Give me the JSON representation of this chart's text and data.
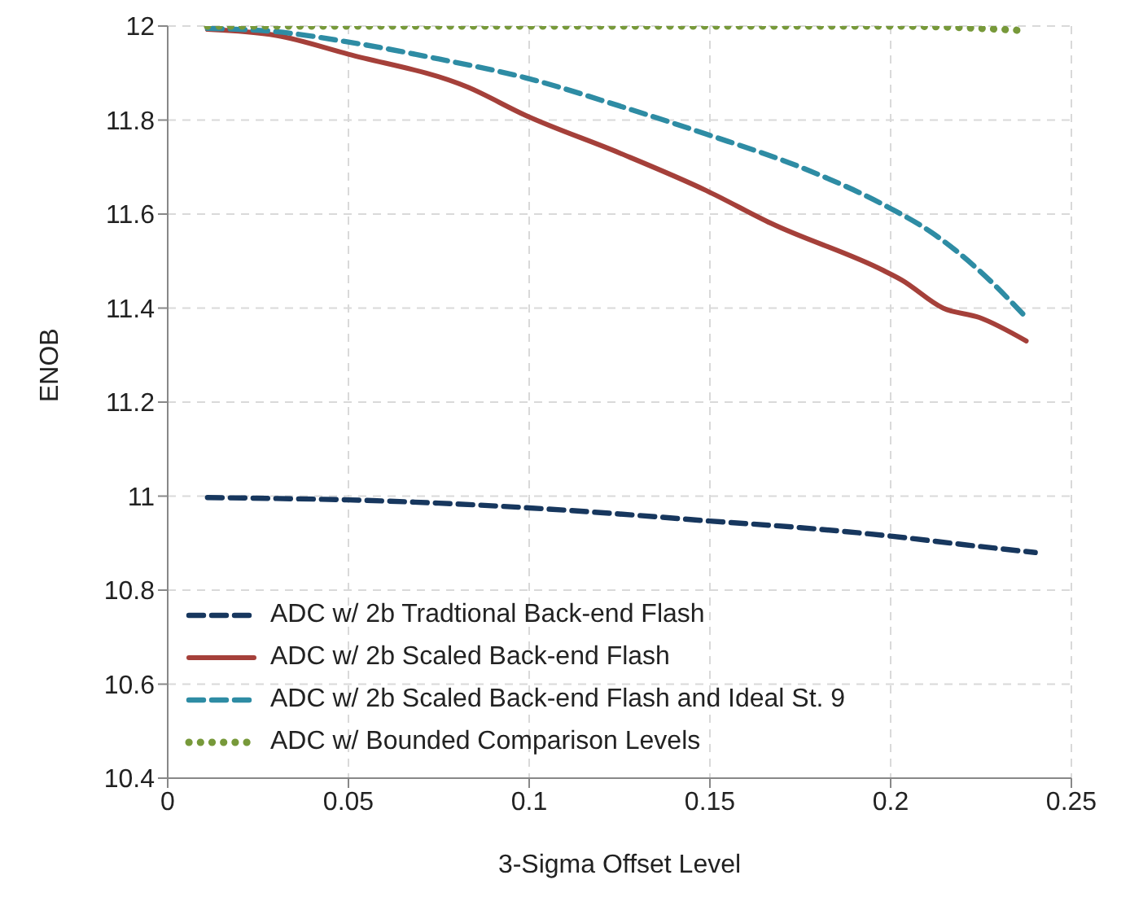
{
  "chart_data": {
    "type": "line",
    "xlabel": "3-Sigma Offset Level",
    "ylabel": "ENOB",
    "xlim": [
      0,
      0.25
    ],
    "xticks": [
      0,
      0.05,
      0.1,
      0.15,
      0.2,
      0.25
    ],
    "ylim": [
      10.4,
      12
    ],
    "yticks": [
      10.4,
      10.6,
      10.8,
      11,
      11.2,
      11.4,
      11.6,
      11.8,
      12
    ],
    "grid": true,
    "legend": "bottom left",
    "marker": "none",
    "series": [
      {
        "name": "ADC w/ 2b Tradtional Back-end Flash",
        "color": "#17375e",
        "line_style": "dashed",
        "x": [
          0.011,
          0.03,
          0.05,
          0.075,
          0.1,
          0.125,
          0.15,
          0.175,
          0.2,
          0.22,
          0.24
        ],
        "values": [
          10.997,
          10.995,
          10.992,
          10.985,
          10.975,
          10.962,
          10.947,
          10.933,
          10.915,
          10.897,
          10.88
        ]
      },
      {
        "name": "ADC w/ 2b Scaled Back-end Flash",
        "color": "#a5403a",
        "line_style": "solid",
        "x": [
          0.011,
          0.03,
          0.05,
          0.083,
          0.099,
          0.125,
          0.149,
          0.167,
          0.198,
          0.203,
          0.2145,
          0.2245,
          0.2375
        ],
        "values": [
          11.993,
          11.98,
          11.94,
          11.87,
          11.81,
          11.73,
          11.65,
          11.58,
          11.48,
          11.46,
          11.4,
          11.38,
          11.33
        ]
      },
      {
        "name": "ADC w/ 2b Scaled Back-end Flash and Ideal St. 9",
        "color": "#2e8ca4",
        "line_style": "dashed",
        "x": [
          0.011,
          0.03,
          0.05,
          0.075,
          0.099,
          0.125,
          0.149,
          0.175,
          0.198,
          0.2115,
          0.2245,
          0.2375
        ],
        "values": [
          11.995,
          11.988,
          11.966,
          11.93,
          11.89,
          11.83,
          11.77,
          11.7,
          11.62,
          11.56,
          11.48,
          11.38
        ]
      },
      {
        "name": "ADC w/ Bounded Comparison Levels",
        "color": "#77993a",
        "line_style": "dotted",
        "x": [
          0.011,
          0.05,
          0.1,
          0.15,
          0.2,
          0.225,
          0.2375
        ],
        "values": [
          12,
          12,
          12,
          12,
          12,
          11.995,
          11.99
        ]
      }
    ]
  }
}
